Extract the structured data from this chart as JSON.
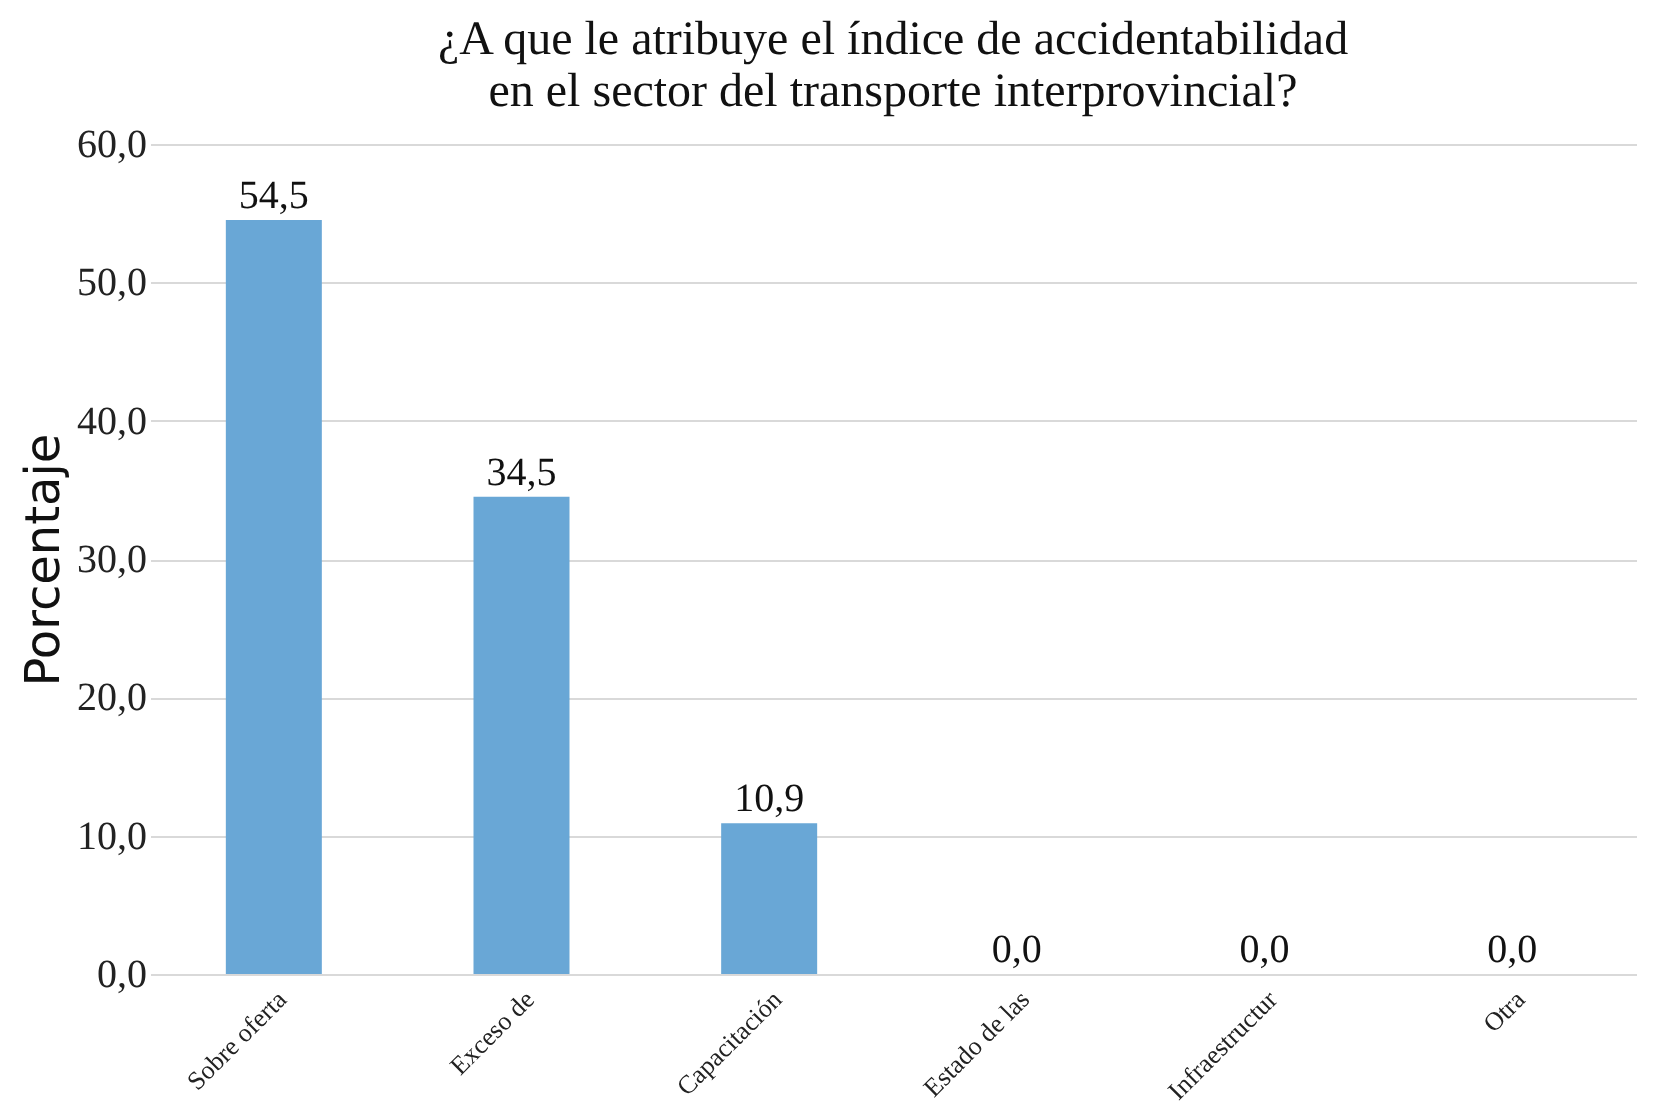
{
  "chart_data": {
    "type": "bar",
    "title": "¿A que le atribuye el índice de accidentabilidad en el sector del transporte interprovincial?",
    "ylabel": "Porcentaje",
    "categories": [
      "Sobre oferta",
      "Exceso de",
      "Capacitación",
      "Estado de las",
      "Infraestructur",
      "Otra"
    ],
    "values": [
      54.5,
      34.5,
      10.9,
      0.0,
      0.0,
      0.0
    ],
    "value_labels": [
      "54,5",
      "34,5",
      "10,9",
      "0,0",
      "0,0",
      "0,0"
    ],
    "color": "#69a7d6",
    "ylim": [
      0,
      60
    ],
    "yticks": [
      {
        "value": 0,
        "label": "0,0"
      },
      {
        "value": 10,
        "label": "10,0"
      },
      {
        "value": 20,
        "label": "20,0"
      },
      {
        "value": 30,
        "label": "30,0"
      },
      {
        "value": 40,
        "label": "40,0"
      },
      {
        "value": 50,
        "label": "50,0"
      },
      {
        "value": 60,
        "label": "60,0"
      }
    ],
    "grid": "y"
  }
}
